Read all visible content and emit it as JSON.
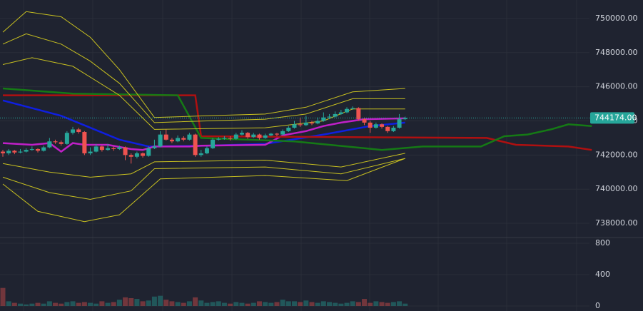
{
  "chart_data": {
    "type": "candlestick",
    "open": [
      742200,
      742100,
      742250,
      742150,
      742200,
      742300,
      742350,
      742250,
      742450,
      742800,
      742750,
      742650,
      743300,
      743500,
      743350,
      742100,
      742200,
      742500,
      742300,
      742400,
      742350,
      742450,
      742000,
      741900,
      742100,
      741950,
      742400,
      742500,
      743200,
      742900,
      742800,
      743000,
      742900,
      743200,
      742000,
      742100,
      742400,
      742900,
      742950,
      743000,
      742950,
      743200,
      743300,
      743050,
      743200,
      743000,
      743150,
      743250,
      743200,
      743400,
      743600,
      743800,
      743750,
      743900,
      743850,
      744000,
      744200,
      744250,
      744400,
      744500,
      744700,
      744750,
      744100,
      743900,
      743600,
      743800,
      743650,
      743400,
      743600,
      744100
    ],
    "high": [
      742300,
      742350,
      742300,
      742350,
      742400,
      742500,
      742400,
      742550,
      743000,
      742900,
      742850,
      743400,
      743650,
      743600,
      743400,
      742450,
      742650,
      742550,
      742650,
      742500,
      742550,
      742500,
      742100,
      742200,
      742150,
      742500,
      742900,
      743400,
      743500,
      743000,
      743150,
      743100,
      743300,
      743250,
      742300,
      742500,
      743000,
      743050,
      743100,
      743100,
      743300,
      743450,
      743350,
      743300,
      743250,
      743250,
      743300,
      743300,
      743500,
      743700,
      744000,
      744200,
      744300,
      744000,
      744200,
      744500,
      744400,
      744550,
      744650,
      744800,
      744850,
      744800,
      744200,
      744000,
      743900,
      743850,
      743700,
      743700,
      744400,
      744250
    ],
    "low": [
      741900,
      742000,
      742050,
      742100,
      742150,
      742250,
      742150,
      742200,
      742400,
      742650,
      742550,
      742600,
      743200,
      743250,
      742000,
      742000,
      742150,
      742200,
      742250,
      742250,
      742300,
      741700,
      741500,
      741800,
      741850,
      741900,
      742350,
      742450,
      742850,
      742700,
      742750,
      742800,
      742850,
      741900,
      741900,
      742050,
      742350,
      742850,
      742900,
      742850,
      742900,
      743150,
      742950,
      743000,
      742900,
      742950,
      743100,
      743100,
      743150,
      743350,
      743550,
      743650,
      743700,
      743750,
      743800,
      743950,
      744100,
      744200,
      744350,
      744450,
      744650,
      744000,
      743750,
      743300,
      743550,
      743550,
      743300,
      743350,
      743550,
      744050
    ],
    "close": [
      742100,
      742250,
      742150,
      742200,
      742300,
      742350,
      742250,
      742450,
      742800,
      742750,
      742650,
      743300,
      743500,
      743350,
      742100,
      742200,
      742500,
      742300,
      742400,
      742350,
      742450,
      742000,
      741900,
      742100,
      741950,
      742400,
      742500,
      743200,
      742900,
      742800,
      743000,
      742900,
      743200,
      742000,
      742100,
      742400,
      742900,
      742950,
      743000,
      742950,
      743200,
      743300,
      743050,
      743200,
      743000,
      743150,
      743250,
      743200,
      743400,
      743600,
      743800,
      743750,
      743900,
      743850,
      744000,
      744200,
      744250,
      744400,
      744500,
      744700,
      744750,
      744100,
      743900,
      743600,
      743800,
      743650,
      743400,
      743600,
      744100,
      744174
    ],
    "volume": [
      230,
      60,
      40,
      30,
      20,
      30,
      40,
      30,
      60,
      40,
      30,
      50,
      60,
      40,
      50,
      40,
      30,
      60,
      40,
      50,
      80,
      110,
      100,
      90,
      60,
      70,
      120,
      130,
      80,
      60,
      50,
      40,
      60,
      110,
      70,
      40,
      50,
      60,
      40,
      30,
      50,
      40,
      30,
      40,
      60,
      50,
      40,
      50,
      80,
      60,
      60,
      50,
      70,
      50,
      40,
      60,
      50,
      40,
      30,
      40,
      60,
      50,
      90,
      40,
      60,
      50,
      40,
      50,
      60,
      30
    ],
    "up_color": "#26a69a",
    "down_color": "#ef5350",
    "ylim": [
      737208,
      751083
    ],
    "yticks": [
      {
        "value": 738000,
        "label": "738000.00"
      },
      {
        "value": 740000,
        "label": "740000.00"
      },
      {
        "value": 742000,
        "label": "742000.00"
      },
      {
        "value": 744000,
        "label": "744000.00"
      },
      {
        "value": 746000,
        "label": "746000.00"
      },
      {
        "value": 748000,
        "label": "748000.00"
      },
      {
        "value": 750000,
        "label": "750000.00"
      }
    ],
    "volume_ylim": [
      -64,
      873
    ],
    "volume_yticks": [
      0,
      400,
      800
    ],
    "last_price": {
      "value": 744174,
      "label": "744174.00"
    },
    "grid": true,
    "series": [
      {
        "color": "#0f1fe0",
        "x": [
          0,
          10,
          20,
          25,
          35,
          45,
          55,
          63,
          69
        ],
        "values": [
          745200,
          744300,
          742900,
          742500,
          742550,
          742650,
          743200,
          743700,
          743900
        ]
      },
      {
        "color": "#c020c8",
        "x": [
          0,
          5,
          8,
          10,
          12,
          14,
          18,
          22,
          24,
          26,
          32,
          34,
          45,
          48,
          52,
          55,
          58,
          62,
          69
        ],
        "values": [
          742700,
          742600,
          742700,
          742200,
          742700,
          742600,
          742600,
          742350,
          742300,
          742500,
          742500,
          742550,
          742600,
          743150,
          743400,
          743700,
          743900,
          744100,
          744150
        ]
      },
      {
        "color": "#b01010",
        "x": [
          0,
          33,
          34,
          83,
          88,
          97,
          101
        ],
        "values": [
          745500,
          745500,
          743100,
          743000,
          742600,
          742500,
          742300
        ]
      },
      {
        "color": "#157a15",
        "x": [
          0,
          12,
          30,
          34,
          50,
          59,
          65,
          72,
          82,
          86,
          90,
          94,
          97,
          101
        ],
        "values": [
          745900,
          745600,
          745500,
          743000,
          742800,
          742500,
          742300,
          742500,
          742500,
          743100,
          743200,
          743500,
          743800,
          743700
        ]
      },
      {
        "color": "#c8c020",
        "x": [
          0,
          4,
          10,
          15,
          20,
          26,
          35,
          45,
          52,
          60,
          69
        ],
        "values": [
          749200,
          750400,
          750100,
          748900,
          747000,
          744200,
          744300,
          744400,
          744800,
          745700,
          745900
        ]
      },
      {
        "color": "#c8c020",
        "x": [
          0,
          4,
          10,
          15,
          20,
          26,
          35,
          45,
          52,
          60,
          69
        ],
        "values": [
          748500,
          749100,
          748500,
          747500,
          746200,
          743900,
          744000,
          744100,
          744400,
          745300,
          745300
        ]
      },
      {
        "color": "#c8c020",
        "x": [
          0,
          5,
          12,
          20,
          26,
          45,
          55,
          60,
          69
        ],
        "values": [
          747300,
          747700,
          747200,
          745500,
          743500,
          743600,
          744000,
          744700,
          744700
        ]
      },
      {
        "color": "#c8c020",
        "x": [
          0,
          8,
          15,
          22,
          26,
          45,
          58,
          69
        ],
        "values": [
          741500,
          741000,
          740700,
          740900,
          741600,
          741700,
          741300,
          742100
        ]
      },
      {
        "color": "#c8c020",
        "x": [
          0,
          8,
          15,
          22,
          26,
          45,
          58,
          69
        ],
        "values": [
          740700,
          739800,
          739400,
          739900,
          741200,
          741300,
          740900,
          741800
        ]
      },
      {
        "color": "#c8c020",
        "x": [
          0,
          6,
          14,
          20,
          24,
          27,
          45,
          59,
          69
        ],
        "values": [
          740300,
          738700,
          738100,
          738500,
          739700,
          740600,
          740800,
          740500,
          741800
        ]
      }
    ]
  }
}
